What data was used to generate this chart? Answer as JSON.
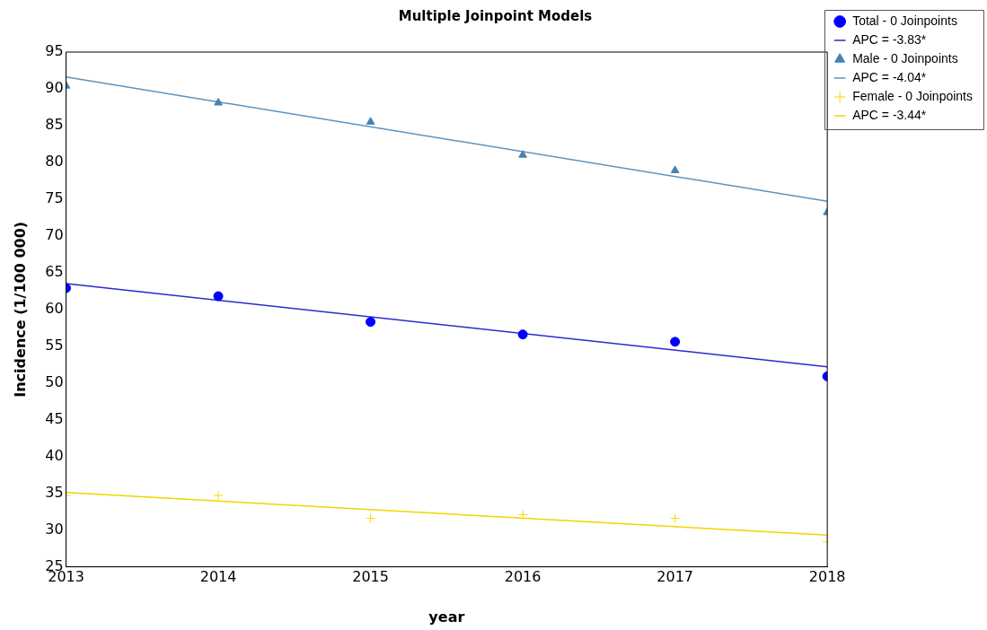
{
  "chart_data": {
    "type": "scatter",
    "title": "Multiple Joinpoint Models",
    "xlabel": "year",
    "ylabel": "Incidence (1/100 000)",
    "xlim": [
      2013,
      2018
    ],
    "xticks": [
      2013,
      2014,
      2015,
      2016,
      2017,
      2018
    ],
    "ylim": [
      25,
      95
    ],
    "yticks": [
      25,
      30,
      35,
      40,
      45,
      50,
      55,
      60,
      65,
      70,
      75,
      80,
      85,
      90,
      95
    ],
    "grid": false,
    "legend": "top right",
    "series": [
      {
        "name": "Total - 0 Joinpoints",
        "type": "scatter",
        "marker": "circle",
        "color": "#0000ff",
        "x": [
          2013,
          2014,
          2015,
          2016,
          2017,
          2018
        ],
        "values": [
          62.9,
          61.8,
          58.3,
          56.6,
          55.6,
          50.9
        ]
      },
      {
        "name": "APC = -3.83*",
        "type": "line",
        "marker": "none",
        "line_style": "solid",
        "color": "#2a2ad0",
        "x": [
          2013,
          2018
        ],
        "values": [
          63.5,
          52.2
        ]
      },
      {
        "name": "Male - 0 Joinpoints",
        "type": "scatter",
        "marker": "triangle",
        "color": "#4682b4",
        "x": [
          2013,
          2014,
          2015,
          2016,
          2017,
          2018
        ],
        "values": [
          90.4,
          88.1,
          85.5,
          81.0,
          78.9,
          73.2
        ]
      },
      {
        "name": "APC = -4.04*",
        "type": "line",
        "marker": "none",
        "line_style": "solid",
        "color": "#5b93c0",
        "x": [
          2013,
          2018
        ],
        "values": [
          91.6,
          74.7
        ]
      },
      {
        "name": "Female - 0 Joinpoints",
        "type": "scatter",
        "marker": "cross",
        "color": "#ffd700",
        "x": [
          2013,
          2014,
          2015,
          2016,
          2017,
          2018
        ],
        "values": [
          34.7,
          34.7,
          31.6,
          32.1,
          31.6,
          28.4
        ]
      },
      {
        "name": "APC = -3.44*",
        "type": "line",
        "marker": "none",
        "line_style": "solid",
        "color": "#f2d400",
        "x": [
          2013,
          2018
        ],
        "values": [
          35.1,
          29.3
        ]
      }
    ]
  }
}
